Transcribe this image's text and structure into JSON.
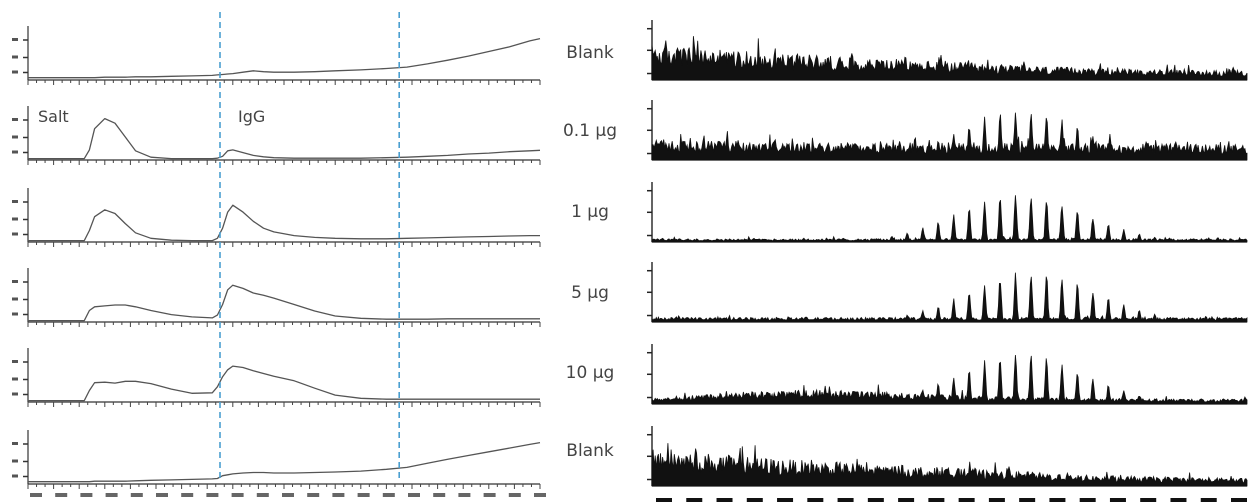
{
  "chart_data": [
    {
      "type": "line",
      "panel": "chromatograms",
      "title": "",
      "xlabel": "",
      "ylabel": "",
      "xlim": [
        0,
        100
      ],
      "ylim": [
        0,
        100
      ],
      "grid": false,
      "annotations": [
        {
          "text": "Salt",
          "trace": 1
        },
        {
          "text": "IgG",
          "trace": 1
        }
      ],
      "dashed_vertical_lines": [
        {
          "x": 37.5,
          "style": "dashed",
          "color": "#4a9fd0"
        },
        {
          "x": 72.5,
          "style": "dashed",
          "color": "#4a9fd0"
        }
      ],
      "x": [
        0,
        2,
        5,
        9,
        11,
        12,
        13,
        15,
        17,
        19,
        21,
        24,
        28,
        32,
        36,
        37,
        38,
        39,
        40,
        42,
        44,
        46,
        48,
        52,
        56,
        60,
        65,
        70,
        74,
        78,
        82,
        86,
        90,
        94,
        98,
        100
      ],
      "series": [
        {
          "values": [
            5,
            5,
            5,
            5,
            5,
            5,
            5,
            6,
            6,
            6,
            7,
            7,
            8,
            9,
            10,
            11,
            12,
            13,
            14,
            17,
            20,
            18,
            17,
            17,
            18,
            20,
            22,
            25,
            28,
            35,
            43,
            52,
            62,
            72,
            85,
            90
          ]
        },
        {
          "values": [
            3,
            3,
            3,
            3,
            3,
            22,
            68,
            90,
            80,
            50,
            20,
            6,
            3,
            3,
            3,
            4,
            8,
            20,
            22,
            16,
            10,
            7,
            5,
            4,
            4,
            4,
            4,
            5,
            6,
            8,
            10,
            13,
            15,
            18,
            20,
            21
          ]
        },
        {
          "values": [
            3,
            3,
            3,
            3,
            3,
            25,
            55,
            70,
            62,
            40,
            20,
            8,
            4,
            3,
            3,
            8,
            30,
            65,
            80,
            65,
            45,
            30,
            22,
            14,
            10,
            8,
            7,
            7,
            8,
            9,
            10,
            11,
            12,
            13,
            14,
            14
          ]
        },
        {
          "values": [
            3,
            3,
            3,
            3,
            3,
            25,
            33,
            35,
            37,
            37,
            33,
            25,
            16,
            11,
            9,
            15,
            38,
            70,
            80,
            73,
            63,
            58,
            52,
            38,
            24,
            13,
            8,
            6,
            6,
            6,
            7,
            7,
            7,
            7,
            7,
            7
          ]
        },
        {
          "values": [
            3,
            3,
            3,
            3,
            3,
            25,
            42,
            43,
            41,
            45,
            45,
            40,
            28,
            19,
            20,
            33,
            55,
            70,
            78,
            75,
            68,
            62,
            56,
            46,
            30,
            15,
            8,
            6,
            6,
            6,
            6,
            6,
            6,
            6,
            6,
            6
          ]
        },
        {
          "values": [
            5,
            5,
            5,
            5,
            5,
            5,
            6,
            6,
            6,
            6,
            7,
            8,
            9,
            10,
            11,
            12,
            18,
            20,
            22,
            24,
            25,
            25,
            24,
            24,
            25,
            26,
            28,
            32,
            36,
            45,
            54,
            62,
            70,
            78,
            86,
            90
          ]
        }
      ]
    },
    {
      "type": "line",
      "panel": "mass-spectra",
      "title": "",
      "xlabel": "",
      "ylabel": "",
      "xlim": [
        0,
        100
      ],
      "ylim": [
        0,
        100
      ],
      "grid": false,
      "row_labels": [
        "Blank",
        "0.1 μg",
        "1 μg",
        "5 μg",
        "10 μg",
        "Blank"
      ],
      "series": [
        {
          "name": "Blank",
          "baseline": [
            55,
            46,
            40,
            34,
            28,
            22,
            18,
            16,
            15
          ],
          "envelope_center": null,
          "envelope_peak": 0
        },
        {
          "name": "0.1 μg",
          "baseline": [
            32,
            30,
            28,
            27,
            27,
            26,
            26,
            25,
            24
          ],
          "envelope_center": 62,
          "envelope_peak": 95
        },
        {
          "name": "1 μg",
          "baseline": [
            5,
            5,
            5,
            5,
            5,
            5,
            5,
            5,
            5
          ],
          "envelope_center": 62,
          "envelope_peak": 92
        },
        {
          "name": "5 μg",
          "baseline": [
            7,
            7,
            7,
            7,
            7,
            7,
            7,
            7,
            7
          ],
          "envelope_center": 64,
          "envelope_peak": 96
        },
        {
          "name": "10 μg",
          "baseline": [
            10,
            18,
            22,
            20,
            14,
            10,
            9,
            8,
            8
          ],
          "envelope_center": 62,
          "envelope_peak": 96
        },
        {
          "name": "Blank",
          "baseline": [
            60,
            48,
            40,
            34,
            28,
            22,
            16,
            14,
            12
          ],
          "envelope_center": null,
          "envelope_peak": 0
        }
      ]
    }
  ]
}
